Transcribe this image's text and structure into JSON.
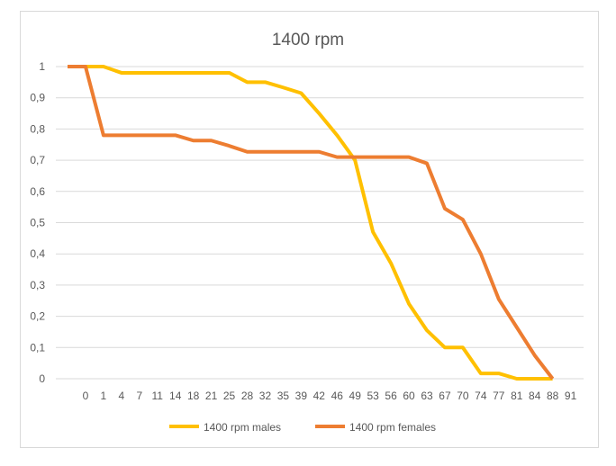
{
  "chart_data": {
    "type": "line",
    "title": "1400 rpm",
    "categories": [
      "",
      "0",
      "1",
      "4",
      "7",
      "11",
      "14",
      "18",
      "21",
      "25",
      "28",
      "32",
      "35",
      "39",
      "42",
      "46",
      "49",
      "53",
      "56",
      "60",
      "63",
      "67",
      "70",
      "74",
      "77",
      "81",
      "84",
      "88",
      "91"
    ],
    "yticks": [
      "0",
      "0,1",
      "0,2",
      "0,3",
      "0,4",
      "0,5",
      "0,6",
      "0,7",
      "0,8",
      "0,9",
      "1"
    ],
    "ylim": [
      0,
      1
    ],
    "grid": true,
    "legend": "bottom",
    "series": [
      {
        "name": "1400 rpm males",
        "color": "#FFC000",
        "values": [
          1,
          1,
          1,
          0.98,
          0.98,
          0.98,
          0.98,
          0.98,
          0.98,
          0.98,
          0.95,
          0.95,
          0.933,
          0.915,
          0.85,
          0.78,
          0.7,
          0.47,
          0.37,
          0.24,
          0.155,
          0.1,
          0.1,
          0.017,
          0.017,
          0,
          0,
          0,
          null
        ]
      },
      {
        "name": "1400 rpm females",
        "color": "#ED7D31",
        "values": [
          1,
          1,
          0.78,
          0.78,
          0.78,
          0.78,
          0.78,
          0.763,
          0.763,
          0.746,
          0.727,
          0.727,
          0.727,
          0.727,
          0.727,
          0.71,
          0.71,
          0.71,
          0.71,
          0.71,
          0.69,
          0.545,
          0.51,
          0.4,
          0.255,
          0.165,
          0.075,
          0,
          null
        ]
      }
    ]
  }
}
